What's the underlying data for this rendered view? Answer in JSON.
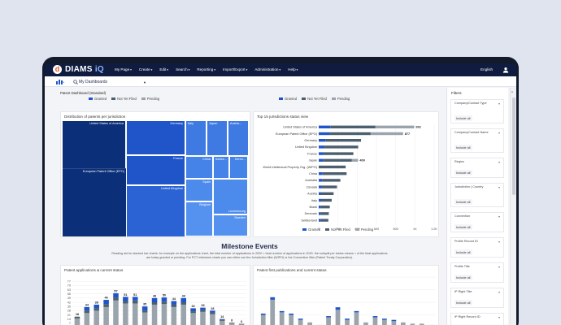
{
  "app": {
    "brand_prefix": "DIAMS ",
    "brand_suffix": "iQ",
    "logo_letter": "d"
  },
  "nav": [
    "My Page",
    "Create",
    "Edit",
    "Search",
    "Reporting",
    "Import/Export",
    "Administration",
    "Help"
  ],
  "language": "English",
  "toolbar": {
    "dashboard_select": "My Dashboards"
  },
  "dashboard": {
    "title": "Patent Dashboard (Standard)"
  },
  "legend": {
    "granted": "Granted",
    "not_yet_filed": "Not Yet Filed",
    "pending": "Pending"
  },
  "colors": {
    "granted": "#1f55c8",
    "not_yet_filed": "#4b5f6e",
    "pending": "#9aa4ac",
    "navy": "#0f1c3f"
  },
  "treemap": {
    "title": "Distribution of patents per jurisdiction",
    "cells": [
      {
        "label": "United States of America",
        "shade": "#0b2f78"
      },
      {
        "label": "European Patent Office (EPO)",
        "shade": "#0b2f78"
      },
      {
        "label": "Germany",
        "shade": "#1f55c8"
      },
      {
        "label": "France",
        "shade": "#1f55c8"
      },
      {
        "label": "United Kingdom",
        "shade": "#2b63d4"
      },
      {
        "label": "Italy",
        "shade": "#3f7ae2"
      },
      {
        "label": "Japan",
        "shade": "#3f7ae2"
      },
      {
        "label": "Austra...",
        "shade": "#3f7ae2"
      },
      {
        "label": "China",
        "shade": "#4583e8"
      },
      {
        "label": "Switze...",
        "shade": "#4583e8"
      },
      {
        "label": "Denm...",
        "shade": "#4583e8"
      },
      {
        "label": "Spain",
        "shade": "#4c8aec"
      },
      {
        "label": "Luxembourg",
        "shade": "#4c8aec"
      },
      {
        "label": "Belgium",
        "shade": "#5592ef"
      },
      {
        "label": "Sweden",
        "shade": "#5592ef"
      }
    ]
  },
  "milestone": {
    "title": "Milestone Events",
    "description": "Reading aid for stacked bar charts: for example on the applications chart, the total number of applications in 2020 = total number of applications in 2020. the subsplit per status means × of the total applications are today granted or pending. For PCT milestone charts you can either use the Jurisdiction filter (WIPO) or the Convention filter (Patent Treaty Corporation)."
  },
  "filters": {
    "title": "Filters",
    "groups": [
      {
        "label": "Company/Contact Type",
        "value": "Include all"
      },
      {
        "label": "Company/Contact Name",
        "value": "Include all"
      },
      {
        "label": "Region",
        "value": "Include all"
      },
      {
        "label": "Jurisdiction | Country",
        "value": "Include all"
      },
      {
        "label": "Convention",
        "value": "Include all"
      },
      {
        "label": "Profile Record ID",
        "value": "Include all"
      },
      {
        "label": "Profile Title",
        "value": "Include all"
      },
      {
        "label": "IP Right Title",
        "value": "Include all"
      },
      {
        "label": "IP Right Record ID",
        "value": "Include all"
      }
    ]
  },
  "chart_data": [
    {
      "type": "bar",
      "title": "Top 15 jurisdictions status view",
      "orientation": "horizontal",
      "stacked": true,
      "categories": [
        "United States of America",
        "European Patent Office (EPO)",
        "Germany",
        "United Kingdom",
        "France",
        "Japan",
        "World Intellectual Property Org. (WIPO)",
        "China",
        "Australia",
        "Canada",
        "Austria",
        "Italy",
        "Brazil",
        "Denmark",
        "Switzerland"
      ],
      "series": [
        {
          "name": "Granted",
          "values": [
            120,
            110,
            70,
            60,
            50,
            45,
            0,
            40,
            35,
            30,
            25,
            25,
            20,
            20,
            20
          ]
        },
        {
          "name": "Not Yet Filed",
          "values": [
            470,
            430,
            370,
            350,
            310,
            300,
            280,
            250,
            190,
            160,
            130,
            110,
            95,
            85,
            80
          ]
        },
        {
          "name": "Pending",
          "values": [
            402,
            337,
            0,
            0,
            0,
            64,
            0,
            0,
            0,
            0,
            0,
            0,
            0,
            0,
            0
          ]
        }
      ],
      "totals": [
        992,
        877,
        440,
        410,
        360,
        409,
        280,
        290,
        225,
        190,
        155,
        135,
        115,
        105,
        100
      ],
      "total_labels": [
        "992",
        "877",
        "",
        "",
        "",
        "409",
        "",
        "",
        "",
        "",
        "",
        "",
        "",
        "",
        ""
      ],
      "xticks": [
        "0",
        "200",
        "400",
        "600",
        "800",
        "1K",
        "1.2K"
      ],
      "xlim": [
        0,
        1200
      ],
      "legend_position": "bottom"
    },
    {
      "type": "bar",
      "title": "Patent applications & current status",
      "stacked": true,
      "series": [
        {
          "name": "Pending",
          "values": [
            15,
            24,
            28,
            34,
            45,
            40,
            40,
            25,
            38,
            39,
            34,
            38,
            24,
            26,
            22,
            11,
            7,
            5
          ]
        },
        {
          "name": "Not Yet Filed",
          "values": [
            3,
            4,
            4,
            5,
            5,
            4,
            5,
            3,
            4,
            4,
            4,
            4,
            3,
            3,
            3,
            2,
            1,
            1
          ]
        },
        {
          "name": "Granted",
          "values": [
            0,
            6,
            6,
            7,
            7,
            7,
            6,
            7,
            7,
            7,
            6,
            7,
            5,
            4,
            3,
            1,
            0,
            0
          ]
        }
      ],
      "data_labels": [
        "18",
        "34",
        "38",
        "46",
        "57",
        "51",
        "51",
        "35",
        "49",
        "50",
        "44",
        "49",
        "32",
        "33",
        "28",
        "14",
        "8",
        "6"
      ],
      "yticks": [
        "0",
        "7",
        "14",
        "21",
        "28",
        "35",
        "42",
        "49",
        "56",
        "63",
        "70",
        "77"
      ],
      "ylim": [
        0,
        84
      ],
      "grid": true
    },
    {
      "type": "bar",
      "title": "Patent first publications and current status",
      "stacked": true,
      "series": [
        {
          "name": "Pending",
          "values": [
            10,
            22,
            12,
            10,
            6,
            4,
            2,
            8,
            14,
            6,
            12,
            4,
            8,
            6,
            5,
            4,
            3,
            3,
            2
          ]
        },
        {
          "name": "Granted",
          "values": [
            1,
            2,
            1,
            1,
            1,
            0,
            0,
            1,
            2,
            1,
            1,
            0,
            1,
            1,
            1,
            0,
            0,
            0,
            0
          ]
        }
      ],
      "ylim": [
        0,
        40
      ],
      "grid": true
    }
  ]
}
